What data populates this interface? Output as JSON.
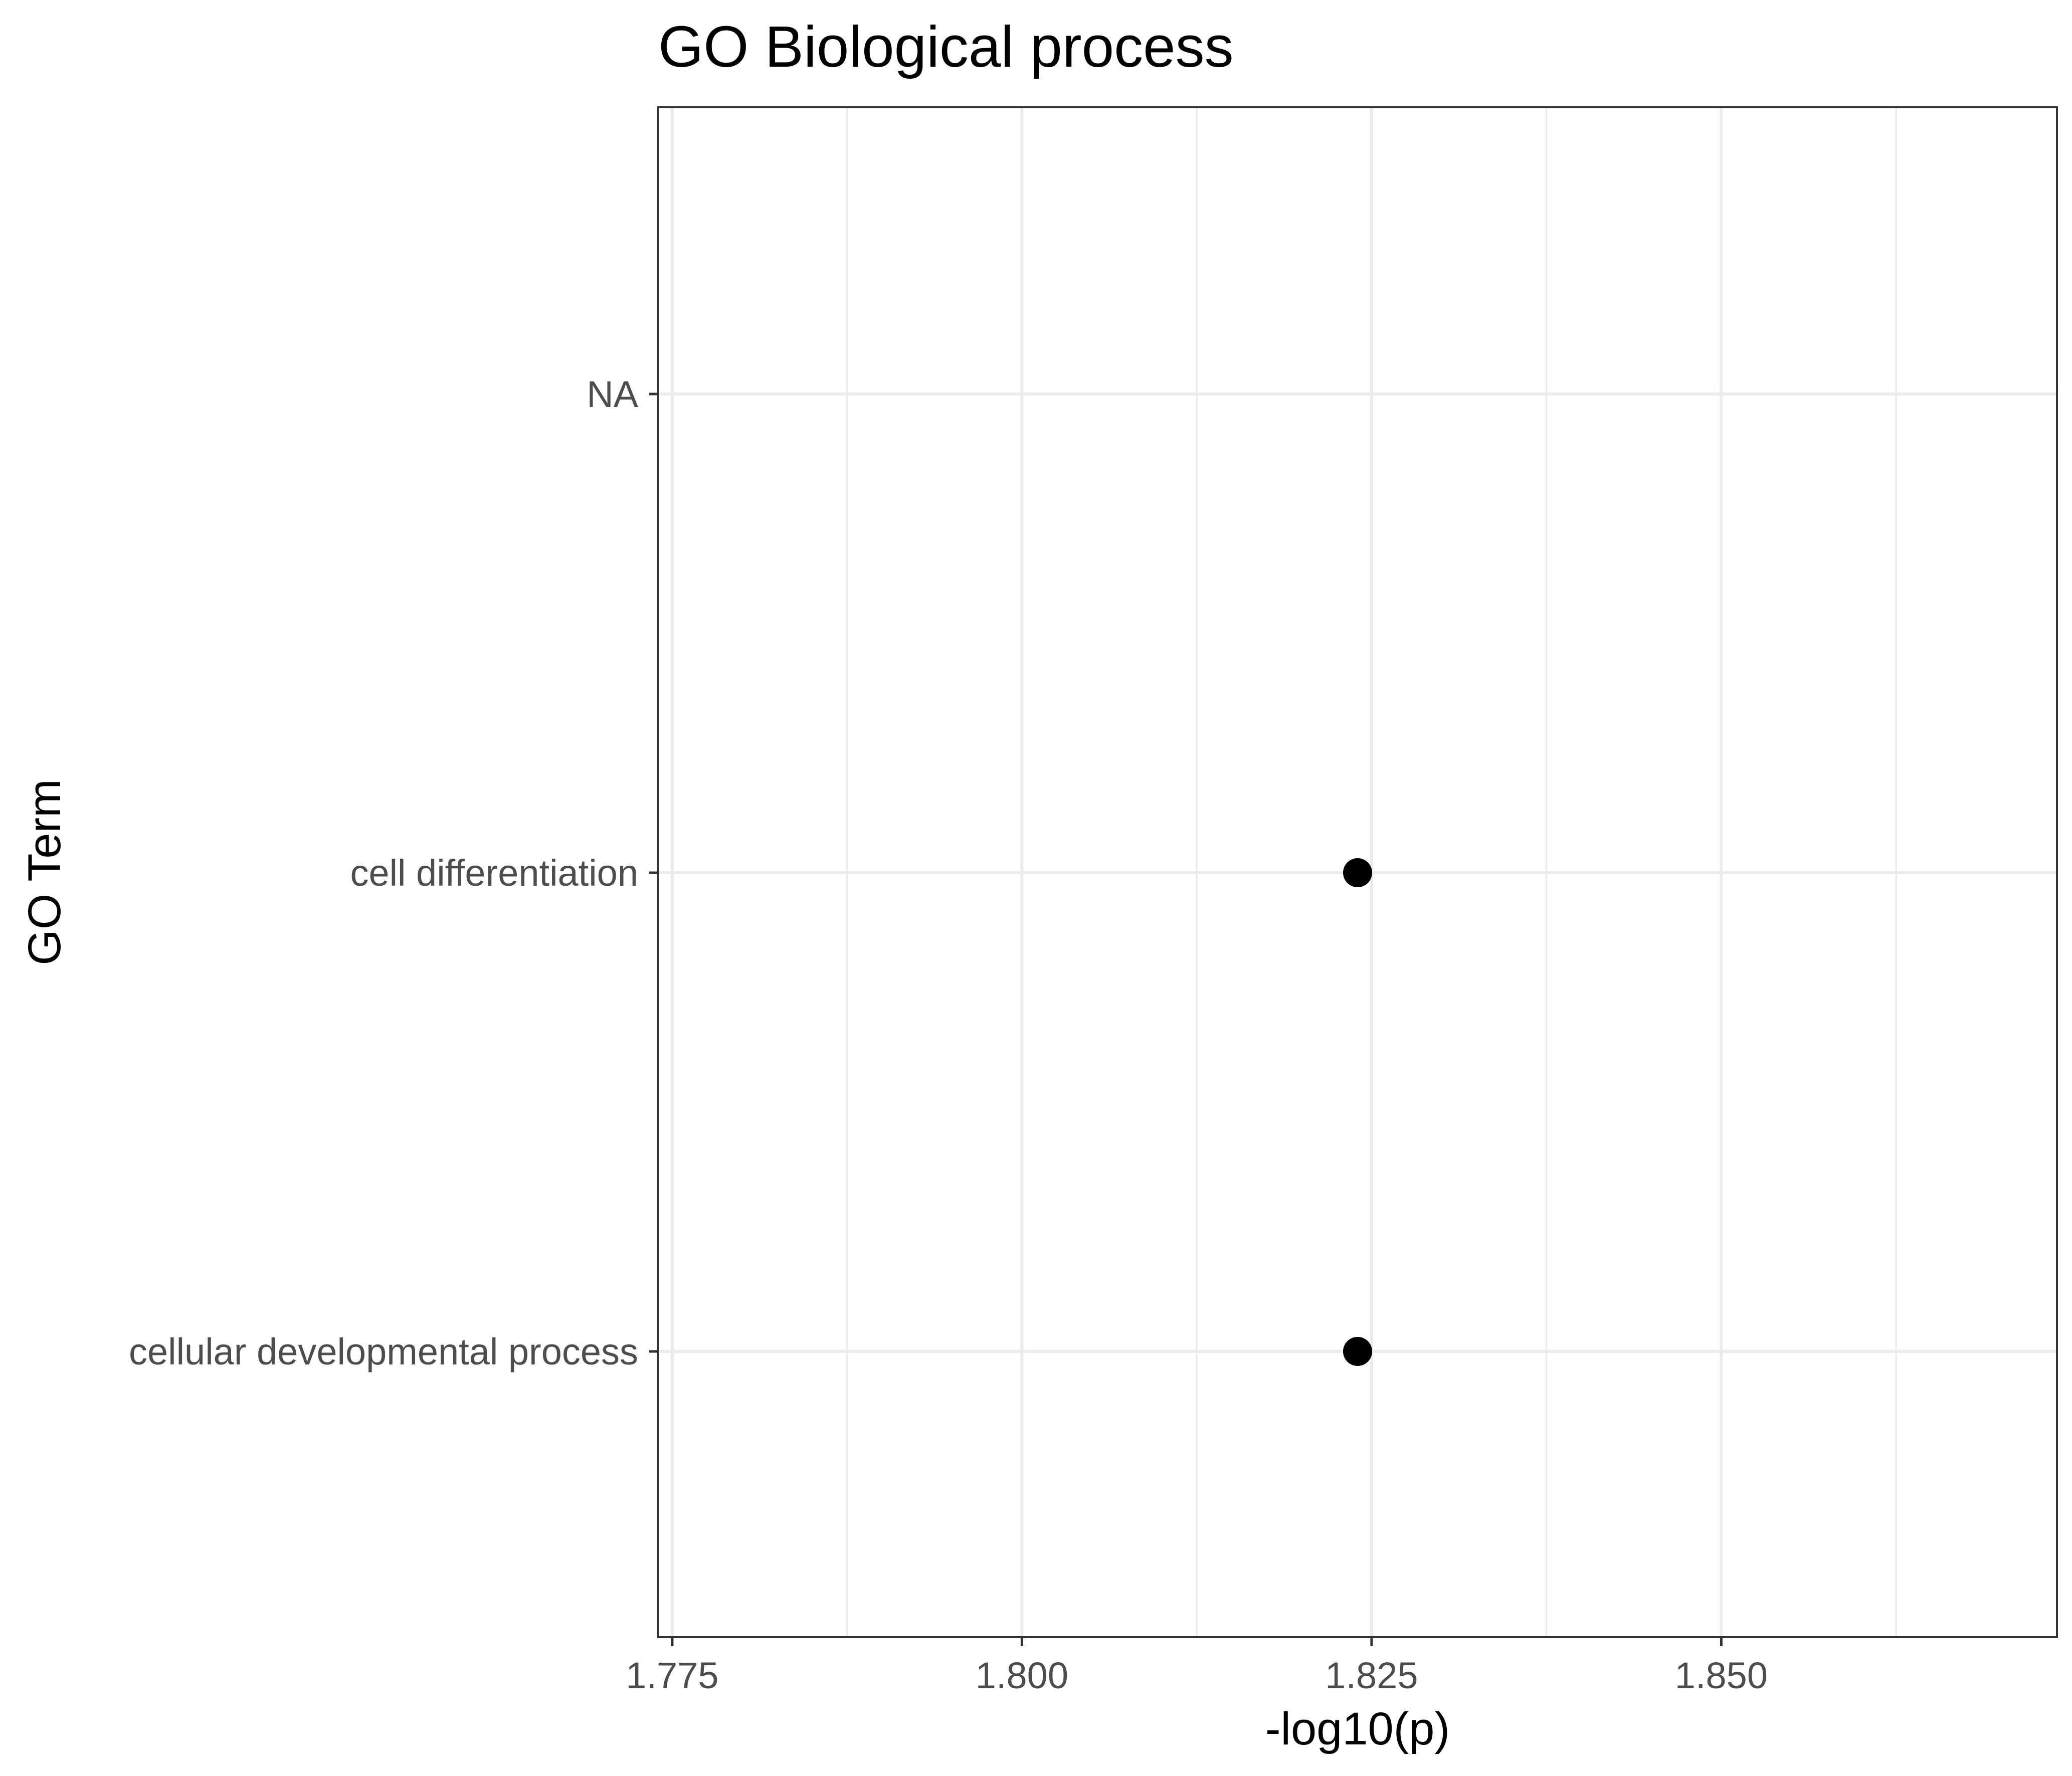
{
  "chart_data": {
    "type": "scatter",
    "title": "GO Biological process",
    "xlabel": "-log10(p)",
    "ylabel": "GO Term",
    "categories": [
      "NA",
      "cell differentiation",
      "cellular developmental process"
    ],
    "x_ticks": [
      "1.775",
      "1.800",
      "1.825",
      "1.850"
    ],
    "xlim": [
      1.774,
      1.874
    ],
    "grid": true,
    "theme": "bw",
    "point_color": "#000000",
    "series": [
      {
        "points": [
          {
            "category": "cell differentiation",
            "x": 1.824
          },
          {
            "category": "cellular developmental process",
            "x": 1.824
          }
        ]
      }
    ]
  }
}
